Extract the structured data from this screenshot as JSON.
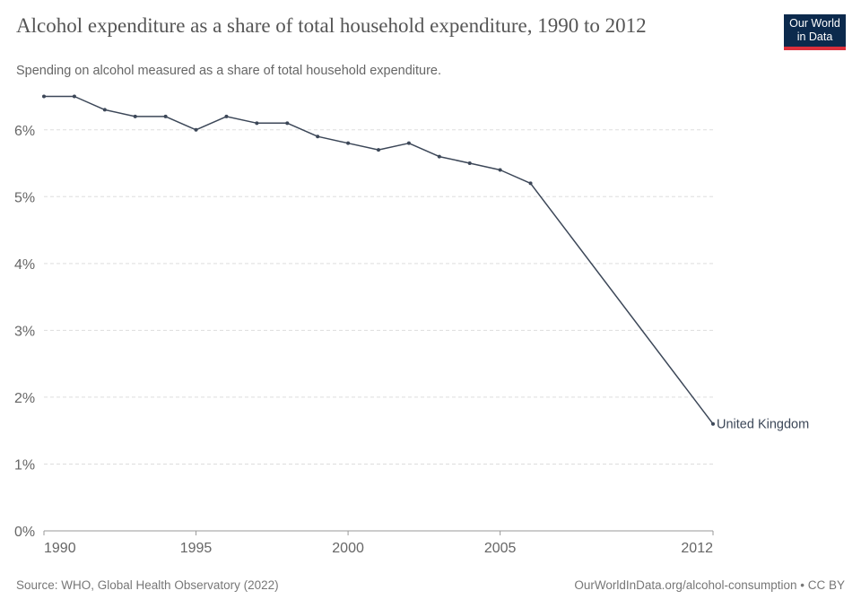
{
  "header": {
    "title": "Alcohol expenditure as a share of total household expenditure, 1990 to 2012",
    "subtitle": "Spending on alcohol measured as a share of total household expenditure."
  },
  "logo": {
    "line1": "Our World",
    "line2": "in Data",
    "bg_color": "#0c2a4d",
    "accent_color": "#dc2f3b"
  },
  "footer": {
    "source": "Source: WHO, Global Health Observatory (2022)",
    "credit": "OurWorldInData.org/alcohol-consumption • CC BY"
  },
  "chart_data": {
    "type": "line",
    "title": "Alcohol expenditure as a share of total household expenditure, 1990 to 2012",
    "subtitle": "Spending on alcohol measured as a share of total household expenditure.",
    "xlabel": "",
    "ylabel": "",
    "xlim": [
      1990,
      2012
    ],
    "ylim": [
      0,
      6.5
    ],
    "x_ticks": [
      1990,
      1995,
      2000,
      2005,
      2012
    ],
    "y_ticks": [
      {
        "value": 0,
        "label": "0%"
      },
      {
        "value": 1,
        "label": "1%"
      },
      {
        "value": 2,
        "label": "2%"
      },
      {
        "value": 3,
        "label": "3%"
      },
      {
        "value": 4,
        "label": "4%"
      },
      {
        "value": 5,
        "label": "5%"
      },
      {
        "value": 6,
        "label": "6%"
      }
    ],
    "grid": "horizontal-dashed",
    "series": [
      {
        "name": "United Kingdom",
        "color": "#3c4758",
        "x": [
          1990,
          1991,
          1992,
          1993,
          1994,
          1995,
          1996,
          1997,
          1998,
          1999,
          2000,
          2001,
          2002,
          2003,
          2004,
          2005,
          2006,
          2012
        ],
        "values": [
          6.5,
          6.5,
          6.3,
          6.2,
          6.2,
          6.0,
          6.2,
          6.1,
          6.1,
          5.9,
          5.8,
          5.7,
          5.8,
          5.6,
          5.5,
          5.4,
          5.2,
          1.6
        ]
      }
    ]
  }
}
